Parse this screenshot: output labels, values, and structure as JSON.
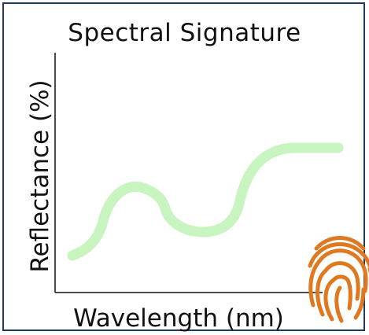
{
  "title": "Spectral Signature",
  "xlabel": "Wavelength (nm)",
  "ylabel": "Reflectance (%)",
  "colors": {
    "curve": "#c7f4bf",
    "axis": "#111111",
    "border": "#1f3a5f",
    "fingerprint": "#e07820"
  },
  "icons": {
    "fingerprint": "fingerprint-icon"
  }
}
